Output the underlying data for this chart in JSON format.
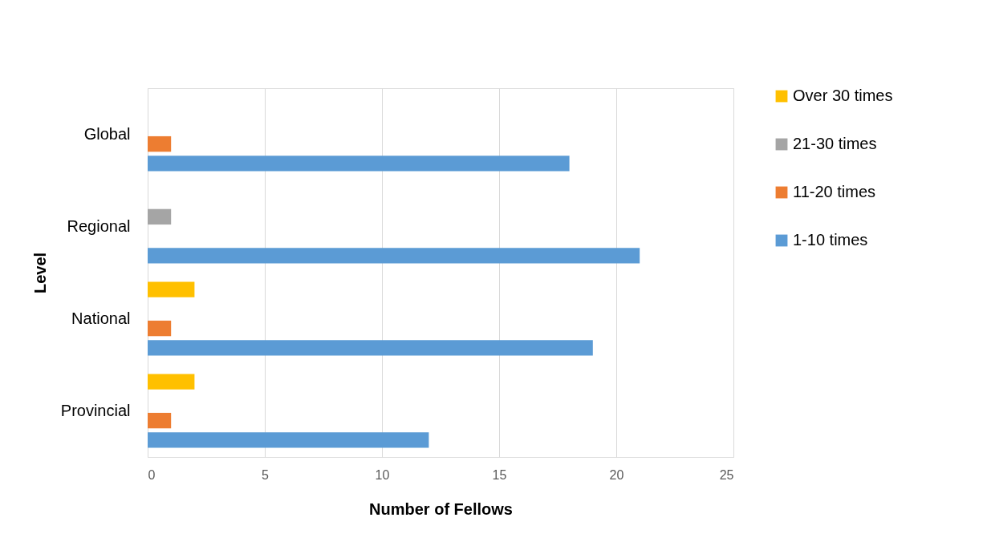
{
  "chart_data": {
    "type": "bar",
    "orientation": "horizontal",
    "xlabel": "Number of Fellows",
    "ylabel": "Level",
    "categories": [
      "Global",
      "Regional",
      "National",
      "Provincial"
    ],
    "series": [
      {
        "name": "1-10 times",
        "color": "#5b9bd5",
        "values": [
          18,
          21,
          19,
          12
        ]
      },
      {
        "name": "11-20 times",
        "color": "#ed7d31",
        "values": [
          1,
          null,
          1,
          1
        ]
      },
      {
        "name": "21-30 times",
        "color": "#a5a5a5",
        "values": [
          null,
          1,
          null,
          null
        ]
      },
      {
        "name": "Over 30 times",
        "color": "#ffc000",
        "values": [
          null,
          null,
          2,
          2
        ]
      }
    ],
    "xlim": [
      0,
      25
    ],
    "xticks": [
      0,
      5,
      10,
      15,
      20,
      25
    ],
    "grid": "x",
    "legend": "right"
  }
}
